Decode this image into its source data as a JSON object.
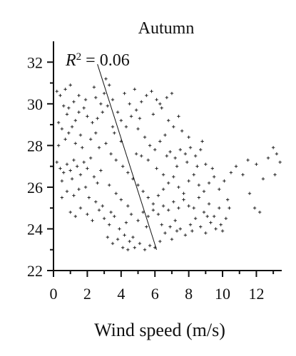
{
  "chart_data": {
    "type": "scatter",
    "title": "Autumn",
    "xlabel": "Wind speed (m/s)",
    "ylabel": "",
    "xlim": [
      0,
      13.5
    ],
    "ylim": [
      22,
      33
    ],
    "xticks": [
      0,
      2,
      4,
      6,
      8,
      10,
      12
    ],
    "yticks": [
      22,
      24,
      26,
      28,
      30,
      32
    ],
    "grid": false,
    "legend": "none",
    "annotation": {
      "prefix": "R",
      "exponent": "2",
      "suffix": " = 0.06"
    },
    "trendline": {
      "x": [
        2.6,
        6.1
      ],
      "y": [
        31.9,
        23.0
      ]
    },
    "points": [
      [
        0.2,
        30.6
      ],
      [
        0.4,
        30.4
      ],
      [
        0.6,
        29.9
      ],
      [
        0.8,
        29.5
      ],
      [
        0.3,
        29.1
      ],
      [
        0.5,
        28.8
      ],
      [
        0.9,
        28.6
      ],
      [
        1.1,
        28.9
      ],
      [
        1.3,
        29.2
      ],
      [
        1.5,
        29.6
      ],
      [
        1.2,
        30.1
      ],
      [
        0.7,
        30.7
      ],
      [
        1.0,
        30.9
      ],
      [
        1.8,
        29.8
      ],
      [
        2.0,
        29.4
      ],
      [
        2.3,
        29.1
      ],
      [
        2.6,
        29.3
      ],
      [
        2.9,
        29.6
      ],
      [
        3.2,
        29.9
      ],
      [
        3.5,
        30.2
      ],
      [
        3.0,
        30.5
      ],
      [
        2.4,
        30.8
      ],
      [
        3.8,
        29.6
      ],
      [
        4.0,
        29.2
      ],
      [
        4.3,
        28.9
      ],
      [
        4.6,
        29.4
      ],
      [
        4.9,
        29.7
      ],
      [
        5.2,
        30.1
      ],
      [
        5.5,
        30.4
      ],
      [
        5.8,
        30.6
      ],
      [
        6.1,
        30.2
      ],
      [
        6.4,
        29.8
      ],
      [
        6.7,
        30.3
      ],
      [
        7.0,
        30.5
      ],
      [
        4.8,
        30.7
      ],
      [
        4.2,
        30.5
      ],
      [
        3.6,
        28.6
      ],
      [
        5.0,
        28.8
      ],
      [
        5.4,
        28.4
      ],
      [
        5.7,
        28.0
      ],
      [
        6.0,
        27.8
      ],
      [
        6.3,
        28.2
      ],
      [
        6.6,
        28.5
      ],
      [
        6.9,
        27.7
      ],
      [
        7.2,
        27.4
      ],
      [
        7.5,
        27.8
      ],
      [
        7.8,
        27.6
      ],
      [
        8.1,
        27.9
      ],
      [
        8.4,
        27.5
      ],
      [
        8.7,
        27.8
      ],
      [
        0.2,
        27.2
      ],
      [
        0.4,
        26.9
      ],
      [
        0.6,
        26.7
      ],
      [
        0.8,
        27.1
      ],
      [
        1.0,
        26.8
      ],
      [
        1.2,
        27.3
      ],
      [
        1.4,
        27.0
      ],
      [
        1.6,
        26.6
      ],
      [
        1.8,
        27.2
      ],
      [
        2.0,
        26.9
      ],
      [
        2.2,
        27.4
      ],
      [
        2.4,
        26.5
      ],
      [
        2.6,
        26.2
      ],
      [
        2.8,
        26.8
      ],
      [
        1.1,
        26.4
      ],
      [
        0.5,
        26.3
      ],
      [
        1.5,
        25.9
      ],
      [
        1.9,
        26.0
      ],
      [
        2.1,
        25.5
      ],
      [
        2.5,
        25.3
      ],
      [
        0.3,
        28.0
      ],
      [
        0.7,
        28.3
      ],
      [
        1.3,
        28.1
      ],
      [
        1.7,
        27.9
      ],
      [
        2.2,
        28.3
      ],
      [
        2.7,
        27.9
      ],
      [
        3.1,
        28.1
      ],
      [
        3.4,
        27.6
      ],
      [
        3.7,
        27.3
      ],
      [
        4.1,
        27.0
      ],
      [
        4.4,
        26.7
      ],
      [
        4.7,
        26.4
      ],
      [
        5.0,
        26.1
      ],
      [
        5.3,
        25.8
      ],
      [
        5.6,
        25.5
      ],
      [
        5.9,
        25.2
      ],
      [
        6.2,
        25.6
      ],
      [
        6.5,
        25.9
      ],
      [
        6.8,
        26.2
      ],
      [
        7.1,
        26.5
      ],
      [
        7.4,
        26.0
      ],
      [
        7.7,
        25.7
      ],
      [
        8.0,
        26.3
      ],
      [
        8.3,
        26.6
      ],
      [
        8.6,
        26.1
      ],
      [
        8.9,
        25.8
      ],
      [
        9.2,
        26.2
      ],
      [
        9.5,
        26.5
      ],
      [
        9.8,
        25.9
      ],
      [
        10.1,
        26.3
      ],
      [
        1.0,
        24.8
      ],
      [
        1.3,
        24.6
      ],
      [
        1.6,
        25.0
      ],
      [
        2.0,
        24.7
      ],
      [
        2.3,
        24.4
      ],
      [
        2.7,
        24.9
      ],
      [
        3.0,
        24.5
      ],
      [
        3.3,
        24.2
      ],
      [
        3.6,
        24.6
      ],
      [
        3.9,
        24.0
      ],
      [
        4.2,
        23.7
      ],
      [
        4.5,
        23.4
      ],
      [
        4.8,
        23.1
      ],
      [
        5.1,
        23.3
      ],
      [
        5.4,
        23.0
      ],
      [
        5.7,
        23.2
      ],
      [
        6.0,
        23.1
      ],
      [
        6.3,
        23.4
      ],
      [
        6.6,
        23.8
      ],
      [
        6.9,
        24.1
      ],
      [
        7.2,
        24.4
      ],
      [
        7.5,
        24.0
      ],
      [
        7.8,
        23.7
      ],
      [
        8.1,
        24.2
      ],
      [
        8.4,
        24.5
      ],
      [
        8.7,
        24.1
      ],
      [
        9.0,
        23.8
      ],
      [
        9.3,
        24.3
      ],
      [
        9.6,
        24.0
      ],
      [
        10.0,
        23.9
      ],
      [
        3.2,
        23.6
      ],
      [
        3.5,
        23.3
      ],
      [
        3.8,
        23.5
      ],
      [
        4.1,
        23.1
      ],
      [
        4.4,
        23.0
      ],
      [
        4.7,
        23.6
      ],
      [
        5.0,
        24.4
      ],
      [
        5.3,
        24.8
      ],
      [
        5.6,
        24.6
      ],
      [
        5.9,
        24.9
      ],
      [
        6.2,
        24.7
      ],
      [
        6.5,
        25.1
      ],
      [
        6.8,
        24.9
      ],
      [
        7.1,
        25.3
      ],
      [
        7.4,
        25.0
      ],
      [
        7.7,
        25.4
      ],
      [
        8.0,
        25.1
      ],
      [
        8.3,
        25.0
      ],
      [
        8.6,
        25.5
      ],
      [
        8.9,
        24.8
      ],
      [
        9.2,
        25.2
      ],
      [
        9.5,
        24.6
      ],
      [
        9.8,
        25.0
      ],
      [
        10.3,
        25.4
      ],
      [
        10.5,
        26.7
      ],
      [
        10.8,
        27.0
      ],
      [
        11.2,
        26.6
      ],
      [
        11.5,
        27.3
      ],
      [
        12.0,
        27.1
      ],
      [
        12.4,
        26.4
      ],
      [
        12.7,
        27.4
      ],
      [
        13.0,
        27.9
      ],
      [
        13.2,
        27.6
      ],
      [
        13.4,
        27.2
      ],
      [
        13.1,
        26.6
      ],
      [
        12.2,
        24.8
      ],
      [
        11.6,
        25.7
      ],
      [
        11.9,
        25.0
      ],
      [
        3.3,
        30.9
      ],
      [
        3.1,
        31.2
      ],
      [
        2.5,
        30.3
      ],
      [
        1.9,
        30.2
      ],
      [
        2.8,
        30.0
      ],
      [
        4.5,
        30.0
      ],
      [
        5.1,
        29.3
      ],
      [
        6.8,
        29.2
      ],
      [
        7.1,
        28.9
      ],
      [
        7.6,
        28.7
      ],
      [
        4.0,
        28.2
      ],
      [
        4.9,
        27.6
      ],
      [
        5.6,
        27.3
      ],
      [
        6.1,
        26.9
      ],
      [
        6.5,
        26.6
      ],
      [
        7.3,
        27.0
      ],
      [
        7.9,
        27.2
      ],
      [
        8.5,
        27.0
      ],
      [
        9.0,
        27.1
      ],
      [
        9.4,
        26.9
      ],
      [
        3.3,
        26.1
      ],
      [
        3.7,
        25.7
      ],
      [
        4.0,
        25.4
      ],
      [
        4.4,
        25.1
      ],
      [
        1.2,
        25.6
      ],
      [
        0.8,
        25.8
      ],
      [
        0.5,
        25.5
      ],
      [
        2.9,
        25.1
      ],
      [
        3.4,
        24.8
      ],
      [
        4.3,
        24.3
      ],
      [
        4.6,
        24.7
      ],
      [
        5.5,
        24.1
      ],
      [
        6.4,
        24.2
      ],
      [
        7.0,
        23.5
      ],
      [
        7.3,
        23.9
      ],
      [
        8.2,
        23.9
      ],
      [
        9.1,
        24.6
      ],
      [
        9.9,
        24.2
      ],
      [
        10.2,
        24.5
      ],
      [
        10.4,
        25.0
      ],
      [
        1.6,
        28.5
      ],
      [
        2.5,
        28.6
      ],
      [
        3.5,
        28.9
      ],
      [
        5.2,
        27.5
      ],
      [
        6.7,
        27.5
      ],
      [
        0.9,
        29.8
      ],
      [
        1.5,
        30.4
      ],
      [
        5.9,
        29.5
      ],
      [
        6.3,
        30.0
      ],
      [
        7.4,
        29.4
      ],
      [
        8.0,
        28.4
      ],
      [
        8.8,
        28.2
      ]
    ]
  }
}
